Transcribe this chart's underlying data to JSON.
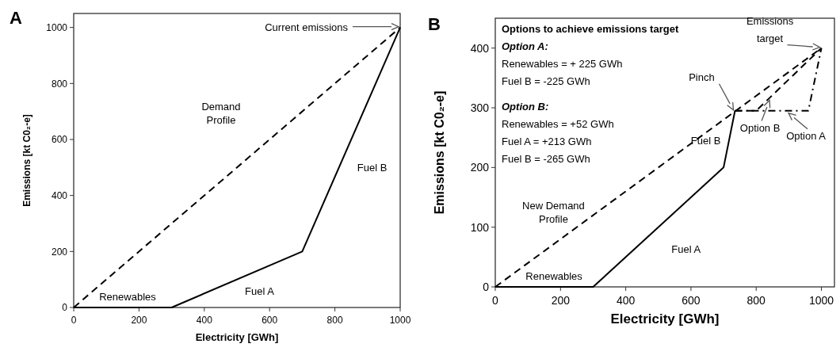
{
  "chart_data": [
    {
      "type": "line",
      "title": "A",
      "xlabel": "Electricity [GWh]",
      "ylabel": "Emissions [kt C0₂-e]",
      "xlim": [
        0,
        1000
      ],
      "ylim": [
        0,
        1050
      ],
      "xticks": [
        0,
        200,
        400,
        600,
        800,
        1000
      ],
      "yticks": [
        0,
        200,
        400,
        600,
        800,
        1000
      ],
      "grid": false,
      "legend": false,
      "series": [
        {
          "name": "Demand Profile",
          "color": "#000000",
          "line_style": "dashed",
          "x": [
            0,
            1000
          ],
          "values": [
            0,
            1000
          ]
        },
        {
          "color": "#000000",
          "line_style": "solid",
          "x": [
            0,
            300,
            700,
            1000
          ],
          "values": [
            0,
            0,
            200,
            1000
          ]
        }
      ],
      "annotations": [
        "Current emissions",
        "Renewables",
        "Fuel A",
        "Fuel B"
      ]
    },
    {
      "type": "line",
      "title": "B",
      "xlabel": "Electricity [GWh]",
      "ylabel": "Emissions [kt C0₂-e]",
      "xlim": [
        0,
        1040
      ],
      "ylim": [
        0,
        450
      ],
      "xticks": [
        0,
        200,
        400,
        600,
        800,
        1000
      ],
      "yticks": [
        0,
        100,
        200,
        300,
        400
      ],
      "grid": false,
      "legend": false,
      "series": [
        {
          "name": "New Demand Profile",
          "color": "#000000",
          "line_style": "dashed",
          "x": [
            0,
            1000
          ],
          "values": [
            0,
            400
          ]
        },
        {
          "color": "#000000",
          "line_style": "solid",
          "x": [
            0,
            300,
            700,
            735
          ],
          "values": [
            0,
            0,
            200,
            295
          ]
        },
        {
          "name": "Option B",
          "color": "#000000",
          "line_style": "dashed",
          "x": [
            735,
            800,
            1000
          ],
          "values": [
            295,
            295,
            400
          ]
        },
        {
          "name": "Option A",
          "color": "#000000",
          "line_style": "dashdot",
          "x": [
            735,
            960,
            1000
          ],
          "values": [
            295,
            295,
            400
          ]
        }
      ],
      "annotations": [
        "Options to achieve emissions target",
        "Option A:",
        "Renewables = + 225 GWh",
        "Fuel B = -225 GWh",
        "Option B:",
        "Renewables = +52 GWh",
        "Fuel A = +213 GWh",
        "Fuel B =  -265 GWh",
        "Pinch",
        "Emissions target",
        "Renewables",
        "Fuel A",
        "Fuel B"
      ]
    }
  ]
}
